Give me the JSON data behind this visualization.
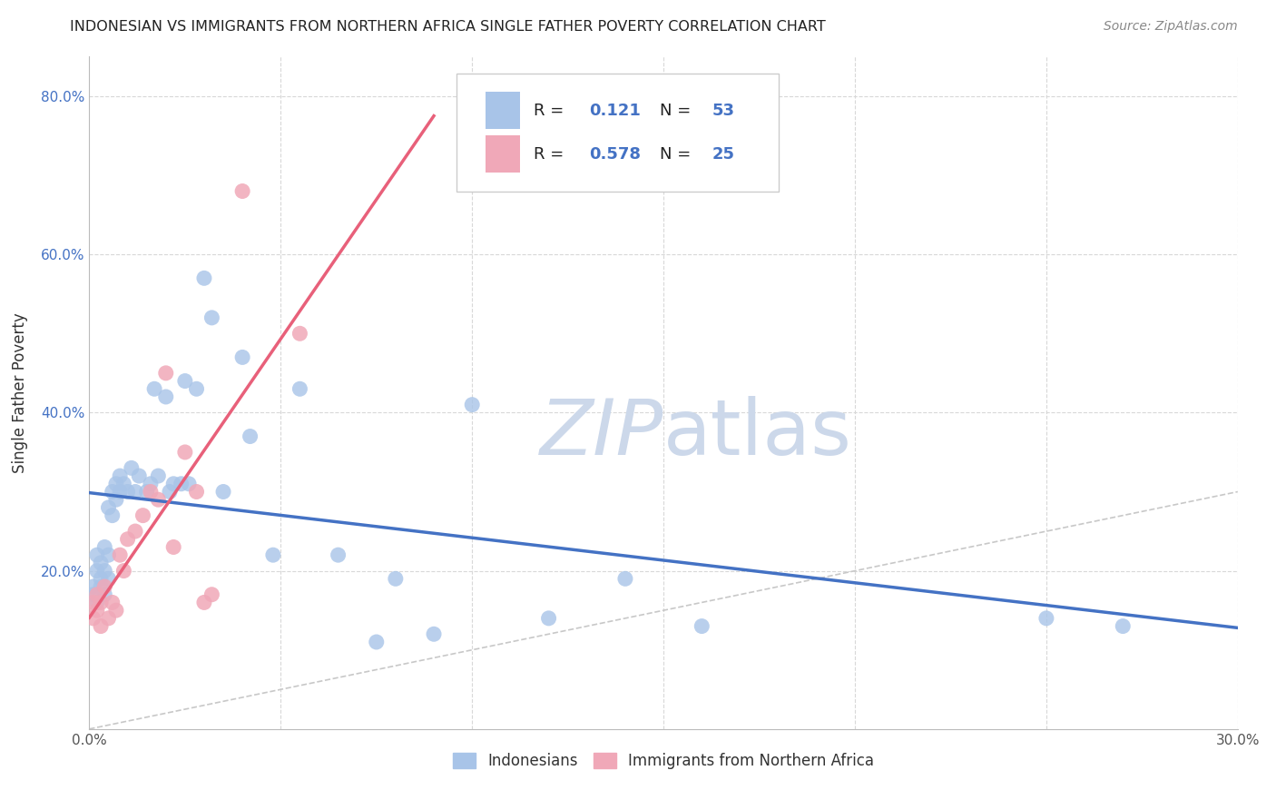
{
  "title": "INDONESIAN VS IMMIGRANTS FROM NORTHERN AFRICA SINGLE FATHER POVERTY CORRELATION CHART",
  "source": "Source: ZipAtlas.com",
  "ylabel": "Single Father Poverty",
  "xlim": [
    0.0,
    0.3
  ],
  "ylim": [
    0.0,
    0.85
  ],
  "legend1_r": "0.121",
  "legend1_n": "53",
  "legend2_r": "0.578",
  "legend2_n": "25",
  "blue_color": "#a8c4e8",
  "pink_color": "#f0a8b8",
  "blue_line_color": "#4472c4",
  "pink_line_color": "#e8607a",
  "diagonal_color": "#c8c8c8",
  "grid_color": "#d8d8d8",
  "watermark_color": "#ccd8ea",
  "indonesian_x": [
    0.001,
    0.001,
    0.002,
    0.002,
    0.002,
    0.003,
    0.003,
    0.003,
    0.004,
    0.004,
    0.004,
    0.005,
    0.005,
    0.005,
    0.006,
    0.006,
    0.007,
    0.007,
    0.008,
    0.008,
    0.009,
    0.01,
    0.011,
    0.012,
    0.013,
    0.015,
    0.016,
    0.017,
    0.018,
    0.02,
    0.021,
    0.022,
    0.024,
    0.025,
    0.026,
    0.028,
    0.03,
    0.032,
    0.035,
    0.04,
    0.042,
    0.048,
    0.055,
    0.065,
    0.075,
    0.08,
    0.09,
    0.1,
    0.12,
    0.14,
    0.16,
    0.25,
    0.27
  ],
  "indonesian_y": [
    0.17,
    0.18,
    0.16,
    0.2,
    0.22,
    0.19,
    0.21,
    0.18,
    0.2,
    0.17,
    0.23,
    0.19,
    0.22,
    0.28,
    0.27,
    0.3,
    0.31,
    0.29,
    0.3,
    0.32,
    0.31,
    0.3,
    0.33,
    0.3,
    0.32,
    0.3,
    0.31,
    0.43,
    0.32,
    0.42,
    0.3,
    0.31,
    0.31,
    0.44,
    0.31,
    0.43,
    0.57,
    0.52,
    0.3,
    0.47,
    0.37,
    0.22,
    0.43,
    0.22,
    0.11,
    0.19,
    0.12,
    0.41,
    0.14,
    0.19,
    0.13,
    0.14,
    0.13
  ],
  "nafrica_x": [
    0.001,
    0.001,
    0.002,
    0.002,
    0.003,
    0.003,
    0.004,
    0.005,
    0.006,
    0.007,
    0.008,
    0.009,
    0.01,
    0.012,
    0.014,
    0.016,
    0.018,
    0.02,
    0.022,
    0.025,
    0.028,
    0.03,
    0.032,
    0.04,
    0.055
  ],
  "nafrica_y": [
    0.14,
    0.16,
    0.15,
    0.17,
    0.13,
    0.16,
    0.18,
    0.14,
    0.16,
    0.15,
    0.22,
    0.2,
    0.24,
    0.25,
    0.27,
    0.3,
    0.29,
    0.45,
    0.23,
    0.35,
    0.3,
    0.16,
    0.17,
    0.68,
    0.5
  ]
}
